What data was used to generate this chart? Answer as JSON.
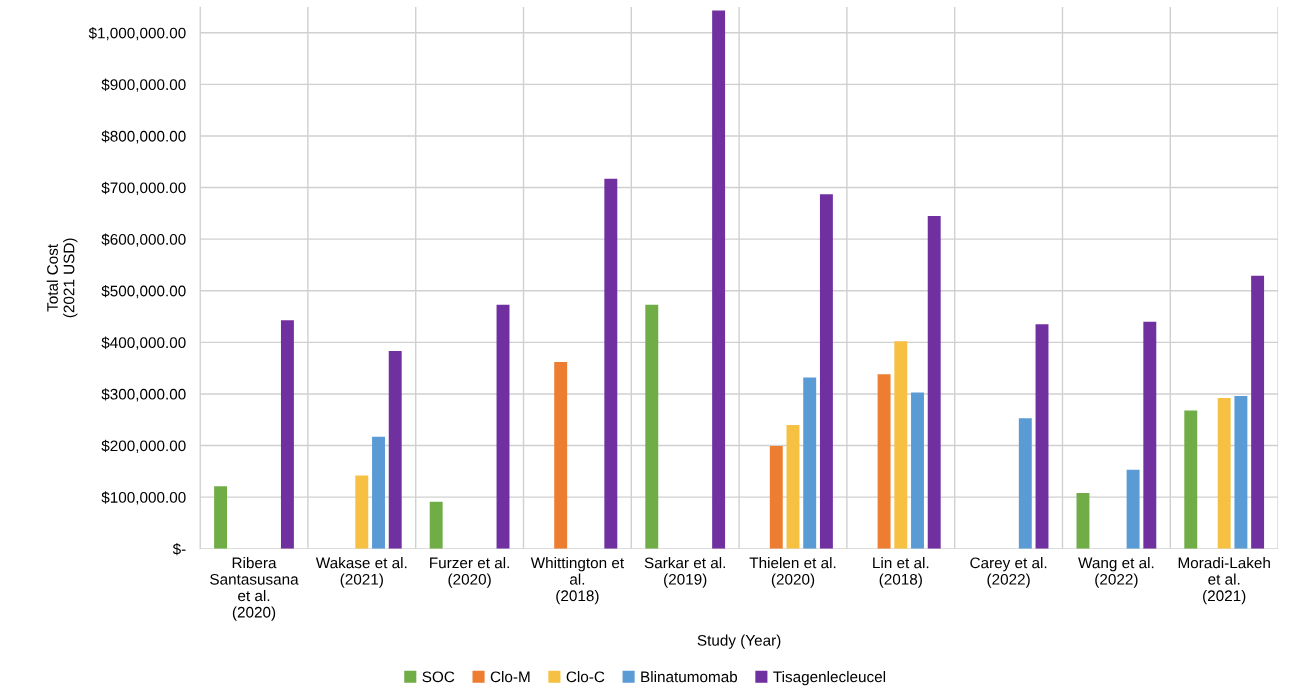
{
  "chart_data": {
    "type": "bar",
    "xlabel": "Study (Year)",
    "ylabel": "Total Cost\n(2021 USD)",
    "categories": [
      "Ribera\nSantasusana\net al.\n(2020)",
      "Wakase et al.\n(2021)",
      "Furzer et al.\n(2020)",
      "Whittington et\nal.\n(2018)",
      "Sarkar et al.\n(2019)",
      "Thielen et al.\n(2020)",
      "Lin et al.\n(2018)",
      "Carey et al.\n(2022)",
      "Wang et al.\n(2022)",
      "Moradi-Lakeh\net al.\n(2021)"
    ],
    "series": [
      {
        "name": "SOC",
        "color": "#70ad47",
        "values": [
          121000,
          null,
          91000,
          null,
          473000,
          null,
          null,
          null,
          108000,
          268000
        ]
      },
      {
        "name": "Clo-M",
        "color": "#ed7d31",
        "values": [
          null,
          null,
          null,
          362000,
          null,
          199000,
          338000,
          null,
          null,
          null
        ]
      },
      {
        "name": "Clo-C",
        "color": "#f6c143",
        "values": [
          null,
          142000,
          null,
          null,
          null,
          240000,
          402000,
          null,
          null,
          292000
        ]
      },
      {
        "name": "Blinatumomab",
        "color": "#5b9bd5",
        "values": [
          null,
          217000,
          null,
          null,
          null,
          332000,
          303000,
          253000,
          153000,
          296000
        ]
      },
      {
        "name": "Tisagenlecleucel",
        "color": "#7030a0",
        "values": [
          443000,
          383000,
          473000,
          717000,
          1043000,
          687000,
          645000,
          435000,
          440000,
          529000
        ]
      }
    ],
    "ylim": [
      0,
      1050000
    ],
    "yticks": [
      {
        "value": 0,
        "label": "$-"
      },
      {
        "value": 100000,
        "label": "$100,000.00"
      },
      {
        "value": 200000,
        "label": "$200,000.00"
      },
      {
        "value": 300000,
        "label": "$300,000.00"
      },
      {
        "value": 400000,
        "label": "$400,000.00"
      },
      {
        "value": 500000,
        "label": "$500,000.00"
      },
      {
        "value": 600000,
        "label": "$600,000.00"
      },
      {
        "value": 700000,
        "label": "$700,000.00"
      },
      {
        "value": 800000,
        "label": "$800,000.00"
      },
      {
        "value": 900000,
        "label": "$900,000.00"
      },
      {
        "value": 1000000,
        "label": "$1,000,000.00"
      }
    ],
    "grid": true,
    "legend": "bottom"
  }
}
